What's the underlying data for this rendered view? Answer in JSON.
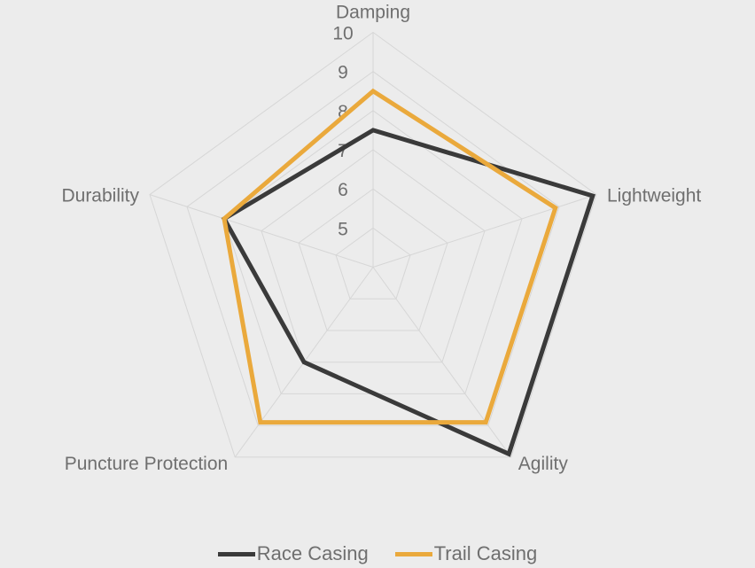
{
  "chart_data": {
    "type": "radar",
    "title": "",
    "categories": [
      "Damping",
      "Lightweight",
      "Agility",
      "Puncture Protection",
      "Durability"
    ],
    "rlim": [
      4,
      10
    ],
    "ticks": [
      5,
      6,
      7,
      8,
      9,
      10
    ],
    "grid": true,
    "legend": "bottom",
    "series": [
      {
        "name": "Race Casing",
        "color": "#3a3a3a",
        "values": [
          7.5,
          9.9,
          9.9,
          7.0,
          8.0
        ]
      },
      {
        "name": "Trail Casing",
        "color": "#eaa93c",
        "values": [
          8.5,
          8.9,
          8.9,
          8.9,
          8.0
        ]
      }
    ]
  }
}
